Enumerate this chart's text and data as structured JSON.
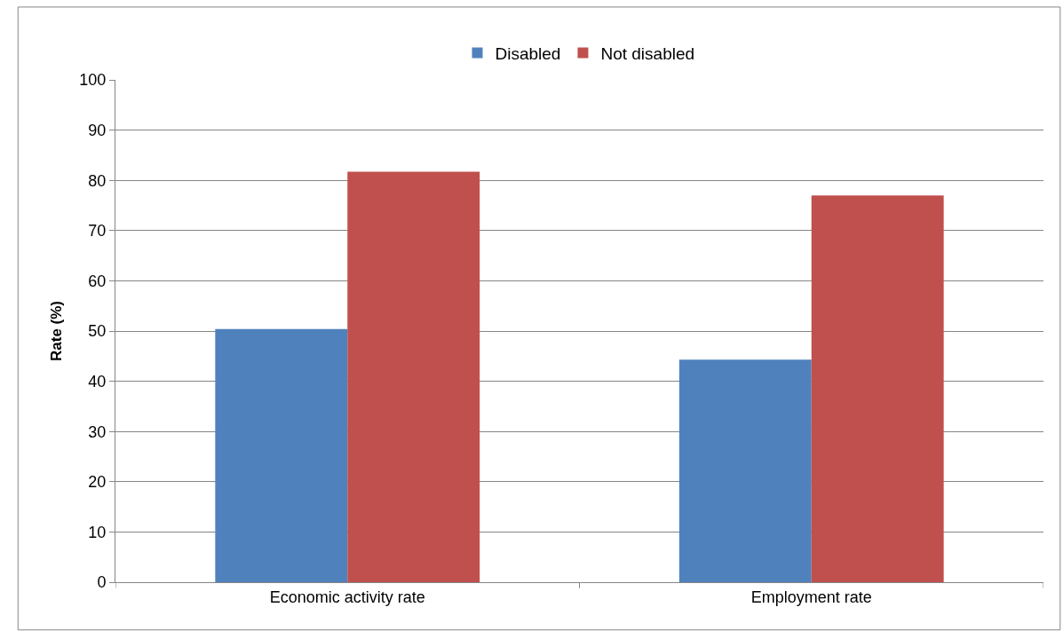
{
  "chart_data": {
    "type": "bar",
    "ylabel": "Rate (%)",
    "categories": [
      "Economic activity rate",
      "Employment rate"
    ],
    "series": [
      {
        "name": "Disabled",
        "color": "#4f81bd",
        "values": [
          50.4,
          44.3
        ]
      },
      {
        "name": "Not disabled",
        "color": "#c0504d",
        "values": [
          81.7,
          77.0
        ]
      }
    ],
    "ylim": [
      0,
      100
    ],
    "yticks": [
      0,
      10,
      20,
      30,
      40,
      50,
      60,
      70,
      80,
      90,
      100
    ],
    "grid": "y",
    "legend": "top"
  }
}
